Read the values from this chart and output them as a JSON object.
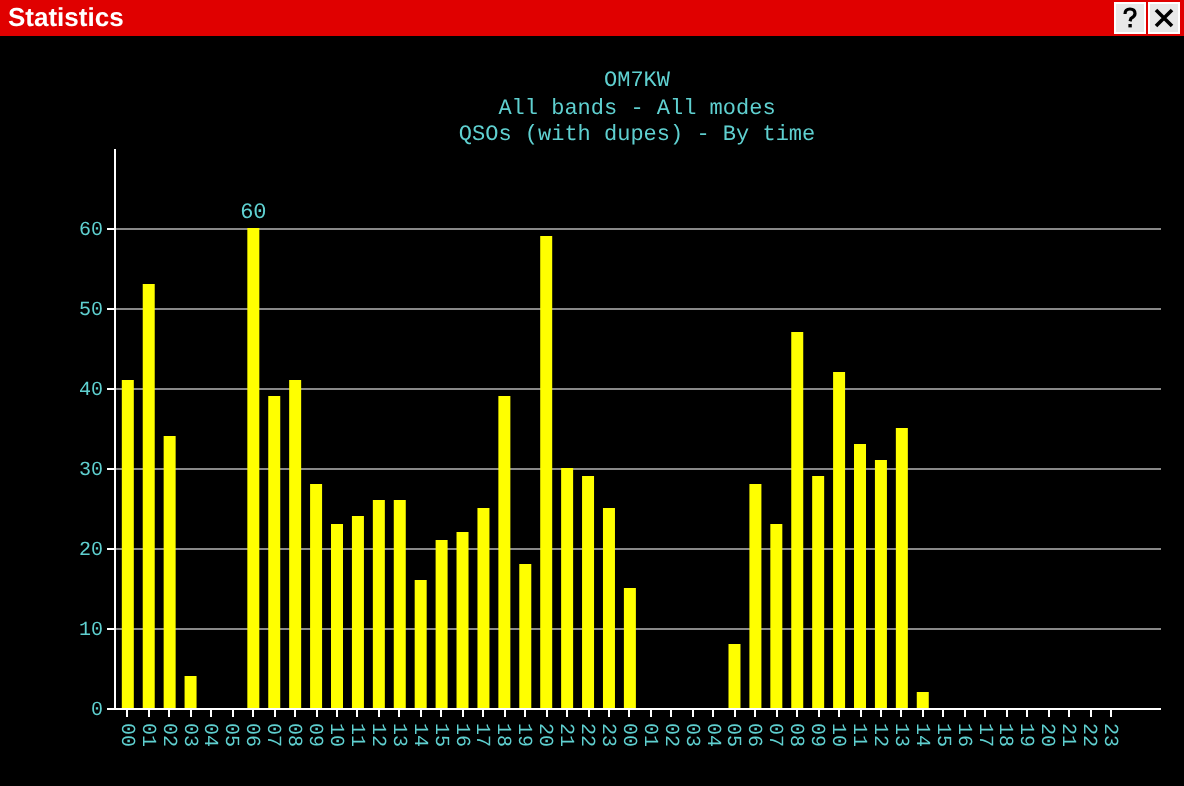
{
  "chart_data": {
    "type": "bar",
    "title": "OM7KW",
    "subtitle": "All bands - All modes\nQSOs (with dupes) - By time",
    "annotations": [
      "Statistics"
    ],
    "categories": [
      "00",
      "01",
      "02",
      "03",
      "04",
      "05",
      "06",
      "07",
      "08",
      "09",
      "10",
      "11",
      "12",
      "13",
      "14",
      "15",
      "16",
      "17",
      "18",
      "19",
      "20",
      "21",
      "22",
      "23",
      "00",
      "01",
      "02",
      "03",
      "04",
      "05",
      "06",
      "07",
      "08",
      "09",
      "10",
      "11",
      "12",
      "13",
      "14",
      "15",
      "16",
      "17",
      "18",
      "19",
      "20",
      "21",
      "22",
      "23"
    ],
    "values": [
      41,
      53,
      34,
      4,
      0,
      0,
      60,
      39,
      41,
      28,
      23,
      24,
      26,
      26,
      16,
      21,
      22,
      25,
      39,
      18,
      59,
      30,
      29,
      25,
      15,
      0,
      0,
      0,
      0,
      8,
      28,
      23,
      47,
      29,
      42,
      33,
      31,
      35,
      2,
      0,
      0,
      0,
      0,
      0,
      0,
      0,
      0,
      0
    ],
    "value_labels": [
      null,
      null,
      null,
      null,
      null,
      null,
      "60",
      null,
      null,
      null,
      null,
      null,
      null,
      null,
      null,
      null,
      null,
      null,
      null,
      null,
      null,
      null,
      null,
      null,
      null,
      null,
      null,
      null,
      null,
      null,
      null,
      null,
      null,
      null,
      null,
      null,
      null,
      null,
      null,
      null,
      null,
      null,
      null,
      null,
      null,
      null,
      null,
      null
    ],
    "color": "#ffff00",
    "ylim": [
      0,
      70
    ],
    "yticks": [
      0,
      10,
      20,
      30,
      40,
      50,
      60
    ],
    "grid": "y"
  }
}
